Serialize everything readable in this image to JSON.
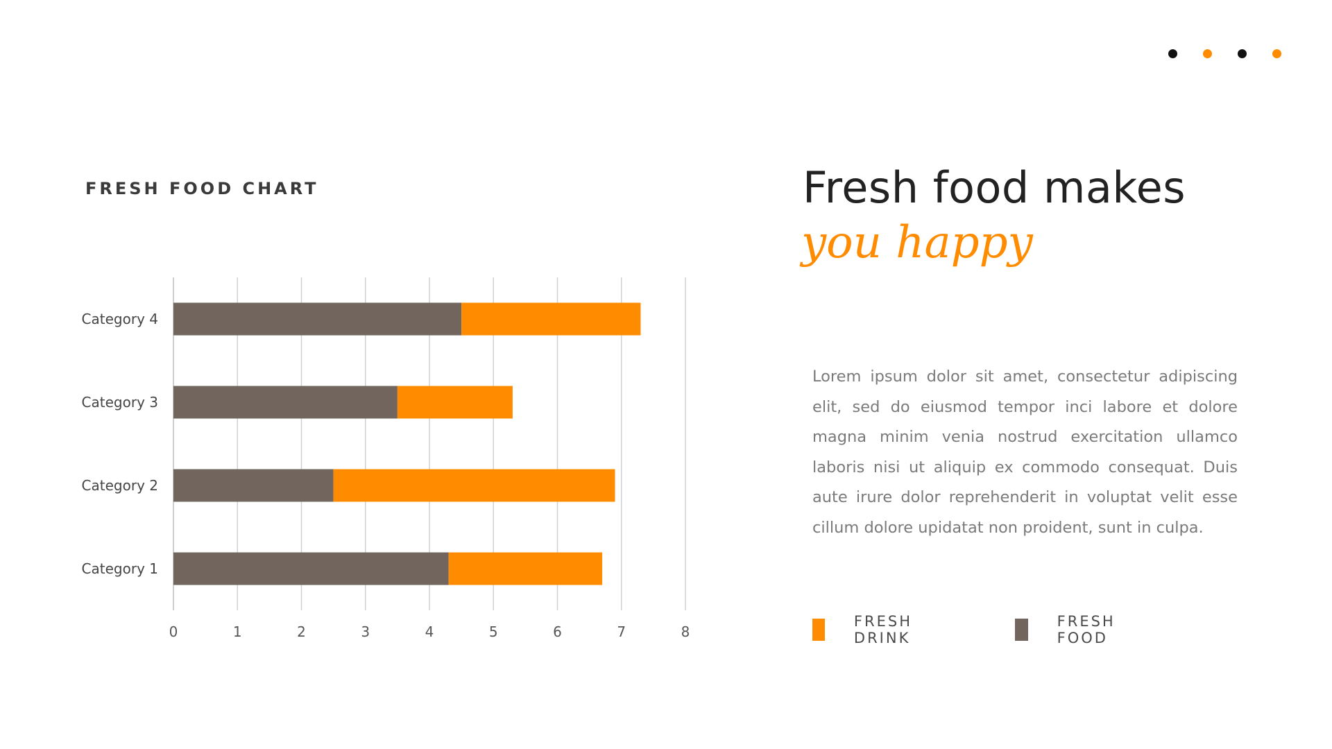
{
  "colors": {
    "orange": "#ff8c00",
    "brown": "#72655d",
    "black": "#111111",
    "grid": "#d0d0d0"
  },
  "nav_dots": [
    "black",
    "orange",
    "black",
    "orange"
  ],
  "chart_title": "FRESH FOOD CHART",
  "headline": {
    "line1": "Fresh food makes",
    "line2": "you happy"
  },
  "body_text": "Lorem ipsum dolor sit amet, consectetur adipiscing elit, sed do eiusmod tempor inci labore et dolore magna minim venia nostrud exercitation ullamco laboris nisi ut aliquip ex commodo consequat. Duis aute irure dolor reprehenderit in voluptat velit esse cillum dolore upidatat non proident, sunt in culpa.",
  "legend": [
    {
      "label": "FRESH DRINK",
      "color": "#ff8c00"
    },
    {
      "label": "FRESH FOOD",
      "color": "#72655d"
    }
  ],
  "chart_data": {
    "type": "bar",
    "orientation": "horizontal",
    "stacked": true,
    "categories": [
      "Category 1",
      "Category 2",
      "Category 3",
      "Category 4"
    ],
    "series": [
      {
        "name": "FRESH FOOD",
        "color": "#72655d",
        "values": [
          4.3,
          2.5,
          3.5,
          4.5
        ]
      },
      {
        "name": "FRESH DRINK",
        "color": "#ff8c00",
        "values": [
          2.4,
          4.4,
          1.8,
          2.8
        ]
      }
    ],
    "xlim": [
      0,
      8
    ],
    "xticks": [
      "0",
      "1",
      "2",
      "3",
      "4",
      "5",
      "6",
      "7",
      "8"
    ],
    "grid": true,
    "legend_position": "bottom-right"
  }
}
